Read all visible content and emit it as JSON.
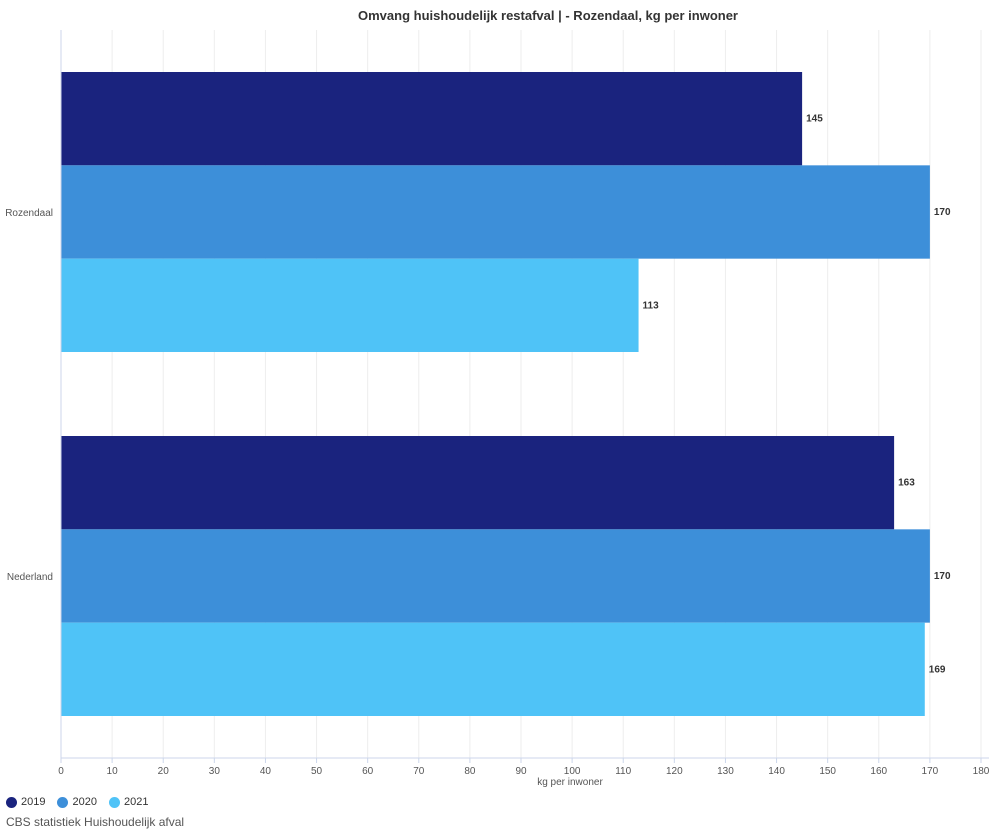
{
  "chart_data": {
    "type": "bar",
    "orientation": "horizontal",
    "title": "Omvang huishoudelijk restafval | - Rozendaal, kg per inwoner",
    "xlabel": "kg per inwoner",
    "ylabel": "",
    "categories": [
      "Rozendaal",
      "Nederland"
    ],
    "series": [
      {
        "name": "2019",
        "values": [
          145,
          163
        ],
        "color": "#1a237e"
      },
      {
        "name": "2020",
        "values": [
          170,
          170
        ],
        "color": "#3d8fd9"
      },
      {
        "name": "2021",
        "values": [
          113,
          169
        ],
        "color": "#4fc3f7"
      }
    ],
    "xlim": [
      0,
      180
    ],
    "ticks": [
      "0",
      "10",
      "20",
      "30",
      "40",
      "50",
      "60",
      "70",
      "80",
      "90",
      "100",
      "110",
      "120",
      "130",
      "140",
      "150",
      "160",
      "170",
      "180"
    ],
    "grid": true,
    "legend_position": "bottom-left",
    "data_labels": true
  },
  "source": "CBS statistiek Huishoudelijk afval"
}
